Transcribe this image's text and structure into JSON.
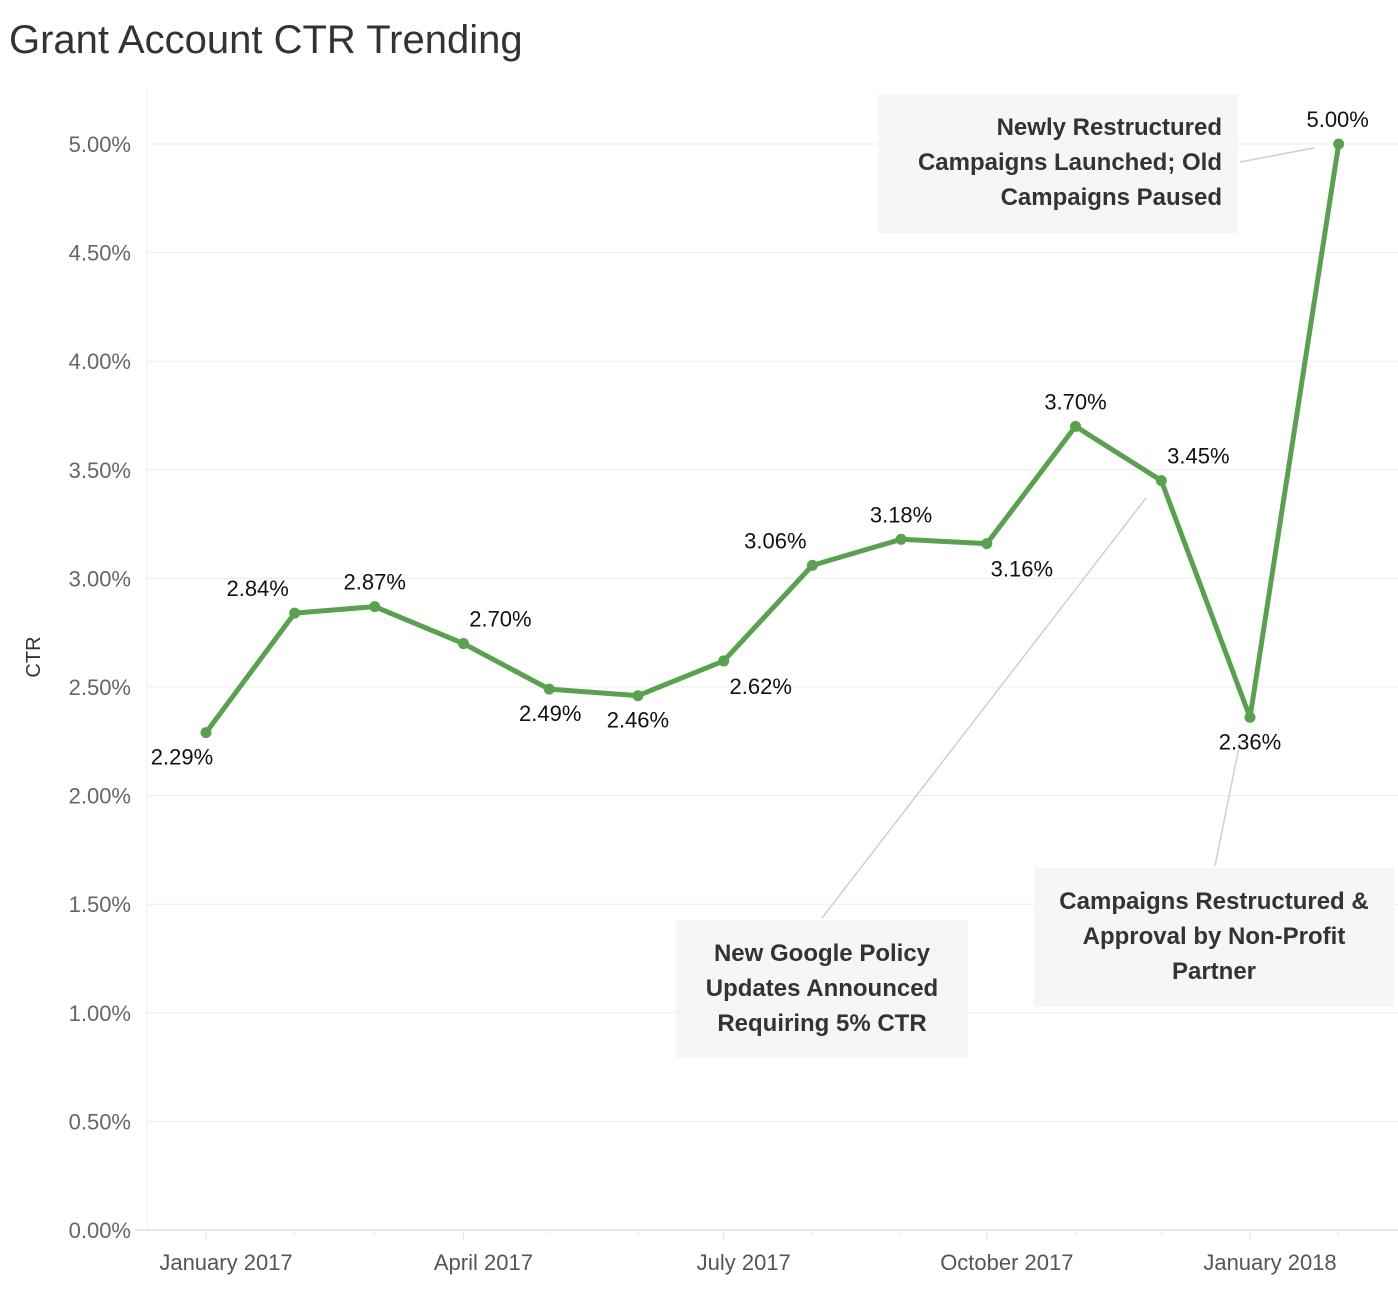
{
  "chart_data": {
    "type": "line",
    "title": "Grant Account CTR Trending",
    "xlabel": "",
    "ylabel": "CTR",
    "x": [
      "2017-01",
      "2017-02",
      "2017-03",
      "2017-04",
      "2017-05",
      "2017-06",
      "2017-07",
      "2017-08",
      "2017-09",
      "2017-10",
      "2017-11",
      "2017-12",
      "2018-01",
      "2018-02"
    ],
    "series": [
      {
        "values": [
          2.29,
          2.84,
          2.87,
          2.7,
          2.49,
          2.46,
          2.62,
          3.06,
          3.18,
          3.16,
          3.7,
          3.45,
          2.36,
          5.0
        ]
      }
    ],
    "data_labels": [
      "2.29%",
      "2.84%",
      "2.87%",
      "2.70%",
      "2.49%",
      "2.46%",
      "2.62%",
      "3.06%",
      "3.18%",
      "3.16%",
      "3.70%",
      "3.45%",
      "2.36%",
      "5.00%"
    ],
    "ylim": [
      0,
      5.25
    ],
    "y_ticks": [
      "0.00%",
      "0.50%",
      "1.00%",
      "1.50%",
      "2.00%",
      "2.50%",
      "3.00%",
      "3.50%",
      "4.00%",
      "4.50%",
      "5.00%"
    ],
    "x_ticks": [
      "January 2017",
      "April 2017",
      "July 2017",
      "October 2017",
      "January 2018"
    ],
    "grid": true,
    "line_color": "#59a14f",
    "annotations": [
      {
        "text": "Newly Restructured Campaigns Launched; Old Campaigns Paused",
        "lines": [
          "Newly Restructured",
          "Campaigns Launched; Old",
          "Campaigns Paused"
        ],
        "point": "2018-02"
      },
      {
        "text": "New Google Policy Updates Announced Requiring 5% CTR",
        "lines": [
          "New Google Policy",
          "Updates Announced",
          "Requiring 5% CTR"
        ],
        "point": "2017-12"
      },
      {
        "text": "Campaigns Restructured & Approval by Non-Profit Partner",
        "lines": [
          "Campaigns Restructured &",
          "Approval by Non-Profit",
          "Partner"
        ],
        "point": "2018-01"
      }
    ]
  }
}
